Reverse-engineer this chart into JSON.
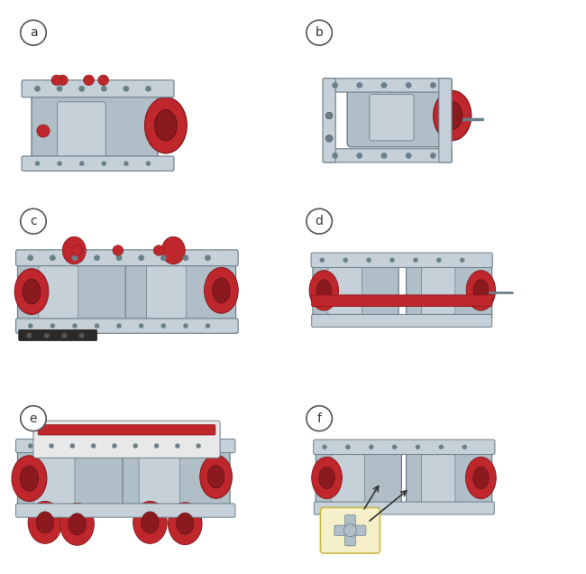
{
  "background_color": "#ffffff",
  "border_color": "#a8cce0",
  "fig_width": 6.5,
  "fig_height": 6.36,
  "labels": [
    "a",
    "b",
    "c",
    "d",
    "e",
    "f"
  ],
  "gray_body": "#9aabb5",
  "gray_dark": "#6b7f8a",
  "gray_light": "#c5d0d8",
  "gray_mid": "#b0bec8",
  "red_color": "#c0272d",
  "red_dark": "#8b1a1f",
  "white_color": "#ffffff",
  "yellow_bg": "#f5f0c8",
  "yellow_border": "#c8b84a"
}
